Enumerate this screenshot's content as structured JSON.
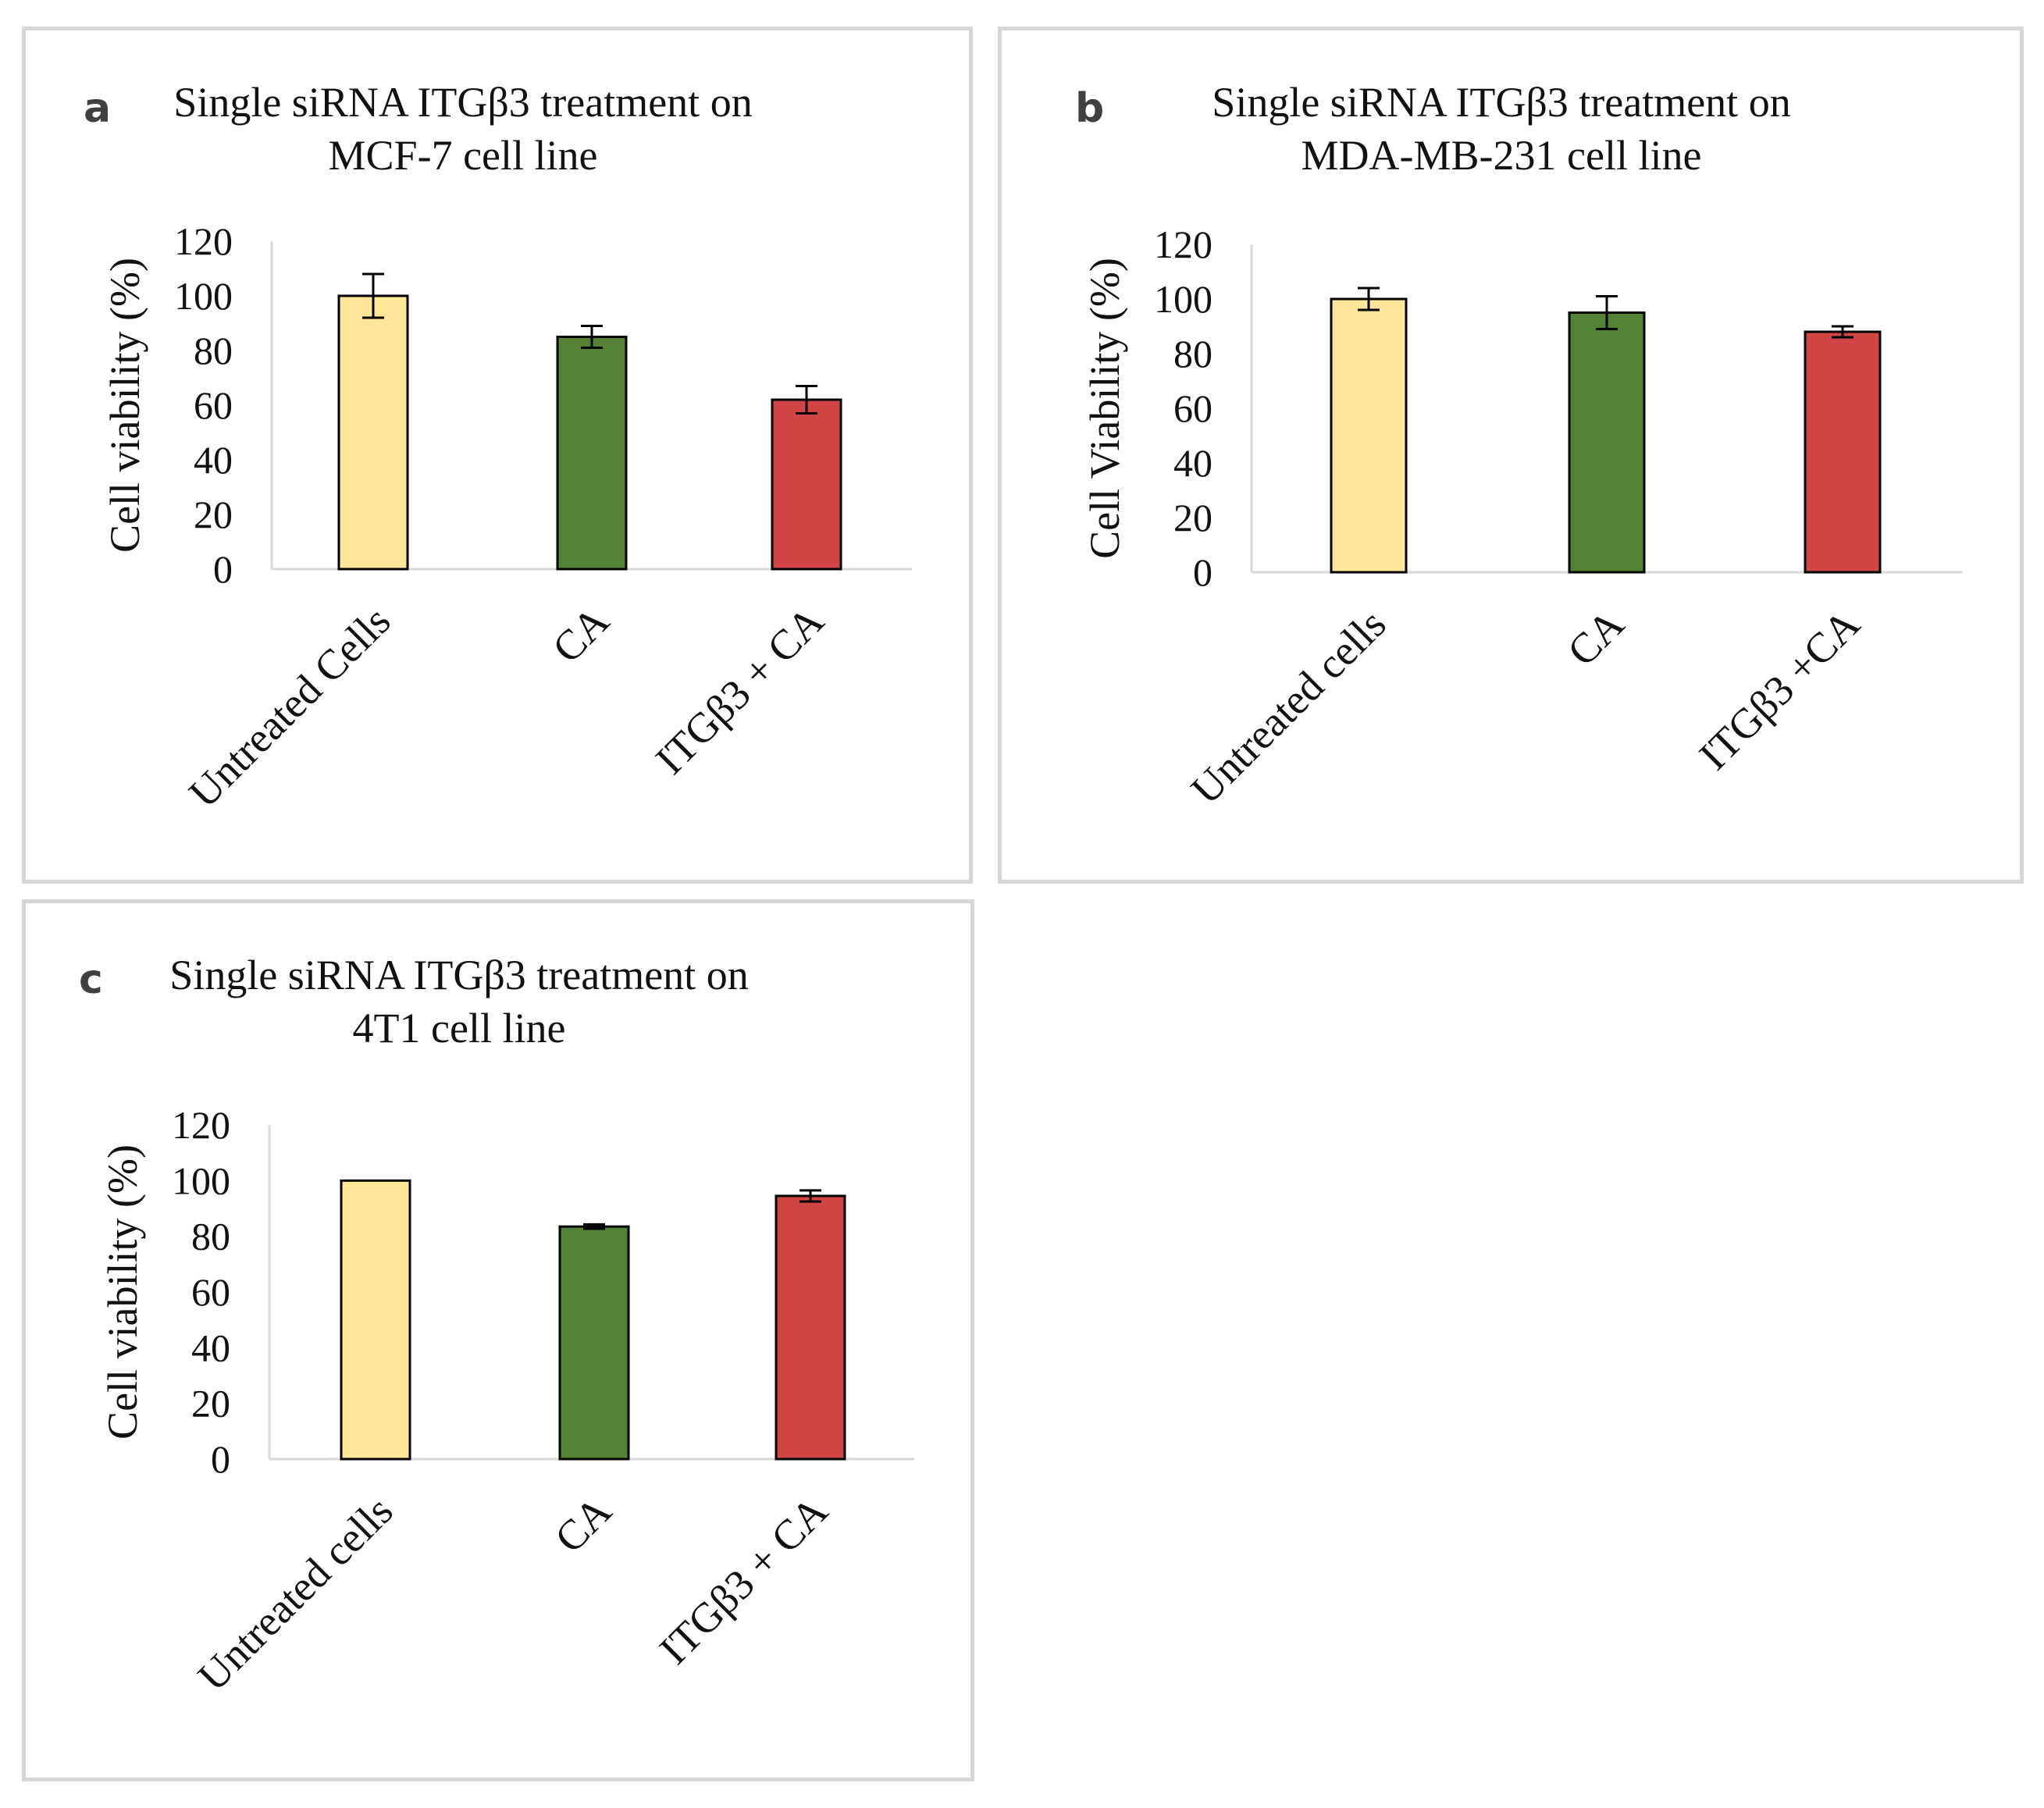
{
  "figure": {
    "panels": [
      {
        "label": "a",
        "title_line1": "Single  siRNA ITGβ3 treatment  on",
        "title_line2": "MCF-7 cell  line"
      },
      {
        "label": "b",
        "title_line1": "Single  siRNA ITGβ3 treatment  on",
        "title_line2": "MDA-MB-231  cell  line"
      },
      {
        "label": "c",
        "title_line1": "Single  siRNA ITGβ3 treatment  on",
        "title_line2": "4T1 cell  line"
      }
    ]
  },
  "chart_data": [
    {
      "type": "bar",
      "title": "Single siRNA ITGβ3 treatment on MCF-7 cell line",
      "ylabel": "Cell  viability  (%)",
      "xlabel": "",
      "categories": [
        "Untreated Cells",
        "CA",
        "ITGβ3 + CA"
      ],
      "values": [
        100,
        85,
        62
      ],
      "errors": [
        8,
        4,
        5
      ],
      "colors": [
        "#ffe699",
        "#548235",
        "#d24545"
      ],
      "ylim": [
        0,
        120
      ],
      "yticks": [
        "0",
        "20",
        "40",
        "60",
        "80",
        "100",
        "120"
      ],
      "grid": false
    },
    {
      "type": "bar",
      "title": "Single siRNA ITGβ3 treatment on MDA-MB-231 cell line",
      "ylabel": "Cell  Viability  (%)",
      "xlabel": "",
      "categories": [
        "Untreated cells",
        "CA",
        "ITGβ3 +CA"
      ],
      "values": [
        100,
        95,
        88
      ],
      "errors": [
        4,
        6,
        2
      ],
      "colors": [
        "#ffe699",
        "#548235",
        "#d24545"
      ],
      "ylim": [
        0,
        120
      ],
      "yticks": [
        "0",
        "20",
        "40",
        "60",
        "80",
        "100",
        "120"
      ],
      "grid": false
    },
    {
      "type": "bar",
      "title": "Single siRNA ITGβ3 treatment on 4T1 cell line",
      "ylabel": "Cell  viability  (%)",
      "xlabel": "",
      "categories": [
        "Untreated cells",
        "CA",
        "ITGβ3 + CA"
      ],
      "values": [
        100,
        83.5,
        94.5
      ],
      "errors": [
        0,
        0.8,
        2
      ],
      "colors": [
        "#ffe699",
        "#548235",
        "#d24545"
      ],
      "ylim": [
        0,
        120
      ],
      "yticks": [
        "0",
        "20",
        "40",
        "60",
        "80",
        "100",
        "120"
      ],
      "grid": false
    }
  ]
}
